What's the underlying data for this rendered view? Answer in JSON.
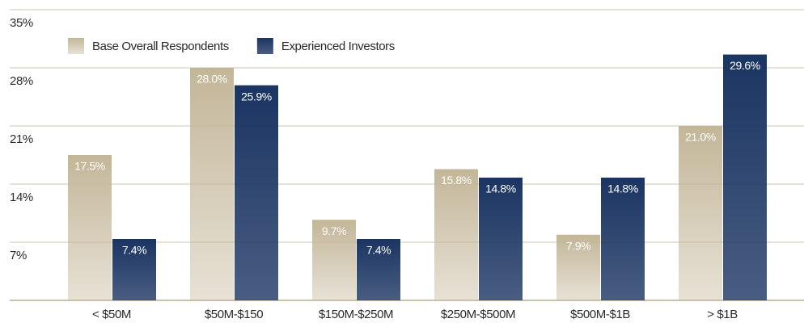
{
  "chart_data": {
    "type": "bar",
    "categories": [
      "< $50M",
      "$50M-$150",
      "$150M-$250M",
      "$250M-$500M",
      "$500M-$1B",
      "> $1B"
    ],
    "series": [
      {
        "name": "Base Overall Respondents",
        "color": "#c3b698",
        "values": [
          17.5,
          28.0,
          9.7,
          15.8,
          7.9,
          21.0
        ],
        "value_labels": [
          "17.5%",
          "28.0%",
          "9.7%",
          "15.8%",
          "7.9%",
          "21.0%"
        ]
      },
      {
        "name": "Experienced Investors",
        "color": "#1b3562",
        "values": [
          7.4,
          25.9,
          7.4,
          14.8,
          14.8,
          29.6
        ],
        "value_labels": [
          "7.4%",
          "25.9%",
          "7.4%",
          "14.8%",
          "14.8%",
          "29.6%"
        ]
      }
    ],
    "ylim": [
      0,
      35
    ],
    "yticks": [
      {
        "value": 7,
        "label": "7%"
      },
      {
        "value": 14,
        "label": "14%"
      },
      {
        "value": 21,
        "label": "21%"
      },
      {
        "value": 28,
        "label": "28%"
      },
      {
        "value": 35,
        "label": "35%"
      }
    ],
    "grid": true,
    "legend": "top-left"
  }
}
